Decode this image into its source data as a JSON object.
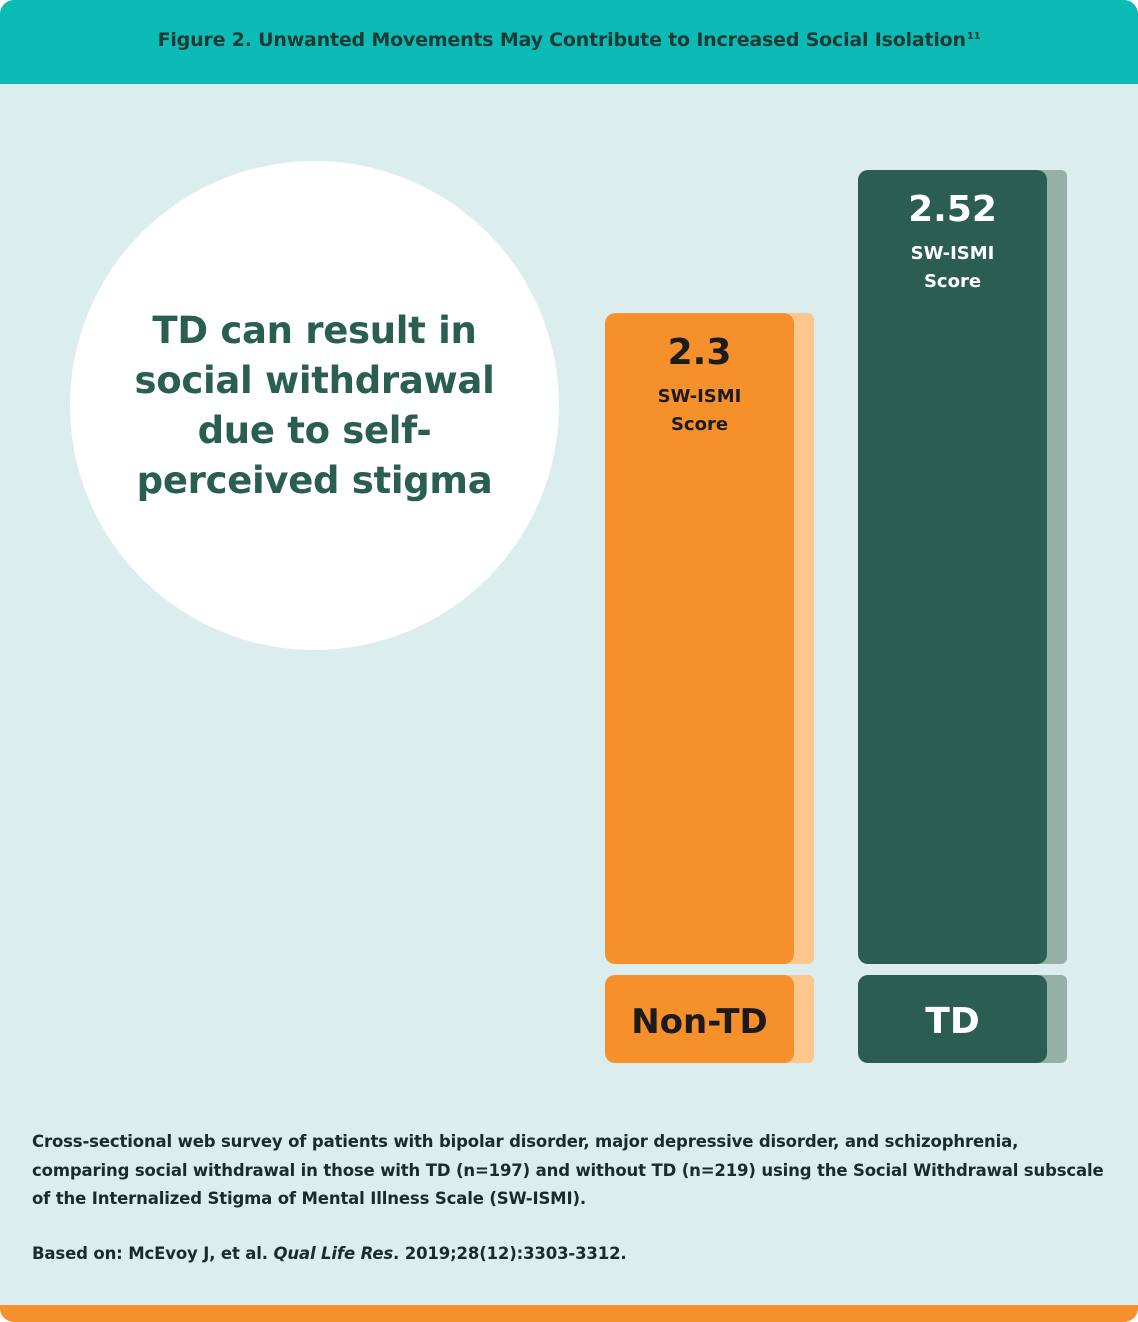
{
  "header": {
    "title": "Figure 2. Unwanted Movements May Contribute to Increased Social Isolation",
    "ref": "11"
  },
  "callout": {
    "text": "TD can result in social withdrawal due to self-perceived stigma"
  },
  "chart_data": {
    "type": "bar",
    "categories": [
      "Non-TD",
      "TD"
    ],
    "values": [
      2.3,
      2.52
    ],
    "value_labels": [
      "2.3",
      "2.52"
    ],
    "value_unit_line1": "SW-ISMI",
    "value_unit_line2": "Score",
    "ylim": [
      0,
      2.52
    ],
    "grid": false,
    "colors": {
      "Non-TD": {
        "bar": "#f5902a",
        "shadow": "#fcc68f",
        "text": "#1b1b1b"
      },
      "TD": {
        "bar": "#2b5e50",
        "shadow": "#94b0a7",
        "text": "#ffffff"
      }
    }
  },
  "footnote": {
    "text": "Cross-sectional web survey of patients with bipolar disorder, major depressive disorder, and schizophrenia, comparing social withdrawal in those with TD (n=197) and without TD (n=219) using the Social Withdrawal subscale of the Internalized Stigma of Mental Illness Scale (SW-ISMI)."
  },
  "citation": {
    "prefix": "Based on: McEvoy J, et al. ",
    "journal": "Qual Life Res",
    "suffix": ". 2019;28(12):3303-3312."
  },
  "colors": {
    "header_bg": "#0cbab6",
    "panel_bg": "#dbedec",
    "callout_text": "#2a5e50",
    "bottom_bar": "#f5902a"
  }
}
